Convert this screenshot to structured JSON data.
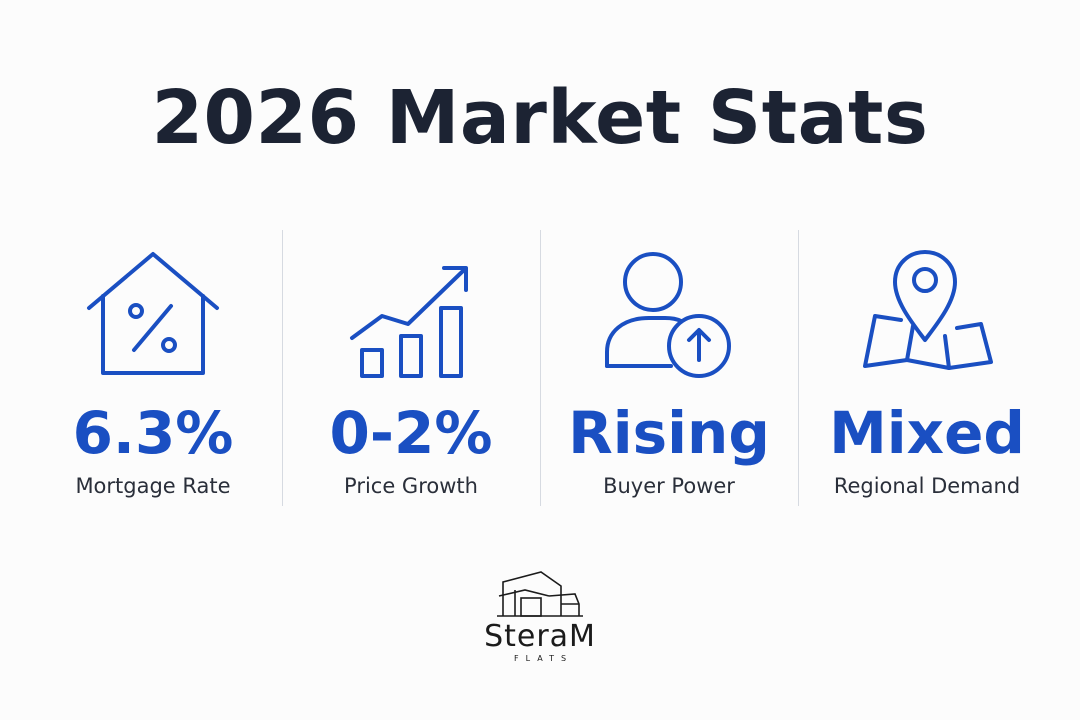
{
  "title": "2026 Market Stats",
  "accent_color": "#1a4fc2",
  "stats": [
    {
      "icon": "house-percent-icon",
      "value": "6.3%",
      "label": "Mortgage Rate"
    },
    {
      "icon": "growth-chart-icon",
      "value": "0-2%",
      "label": "Price Growth"
    },
    {
      "icon": "user-up-icon",
      "value": "Rising",
      "label": "Buyer Power"
    },
    {
      "icon": "map-pin-icon",
      "value": "Mixed",
      "label": "Regional Demand"
    }
  ],
  "logo": {
    "name": "SteraM",
    "sub": "FLATS"
  }
}
